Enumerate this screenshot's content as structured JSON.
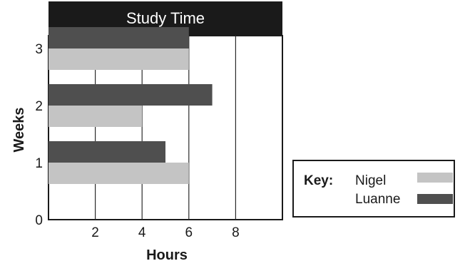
{
  "chart_data": {
    "type": "bar",
    "orientation": "horizontal",
    "title": "Study Time",
    "xlabel": "Hours",
    "ylabel": "Weeks",
    "categories": [
      "1",
      "2",
      "3"
    ],
    "x_ticks": [
      "2",
      "4",
      "6",
      "8"
    ],
    "y_zero_label": "0",
    "xlim": [
      0,
      10
    ],
    "grid": "vertical",
    "legend_placement": "right",
    "legend_title": "Key:",
    "series": [
      {
        "name": "Nigel",
        "values": [
          6,
          4,
          6
        ],
        "color": "#c4c4c4"
      },
      {
        "name": "Luanne",
        "values": [
          5,
          7,
          6
        ],
        "color": "#4f4f4f"
      }
    ]
  }
}
